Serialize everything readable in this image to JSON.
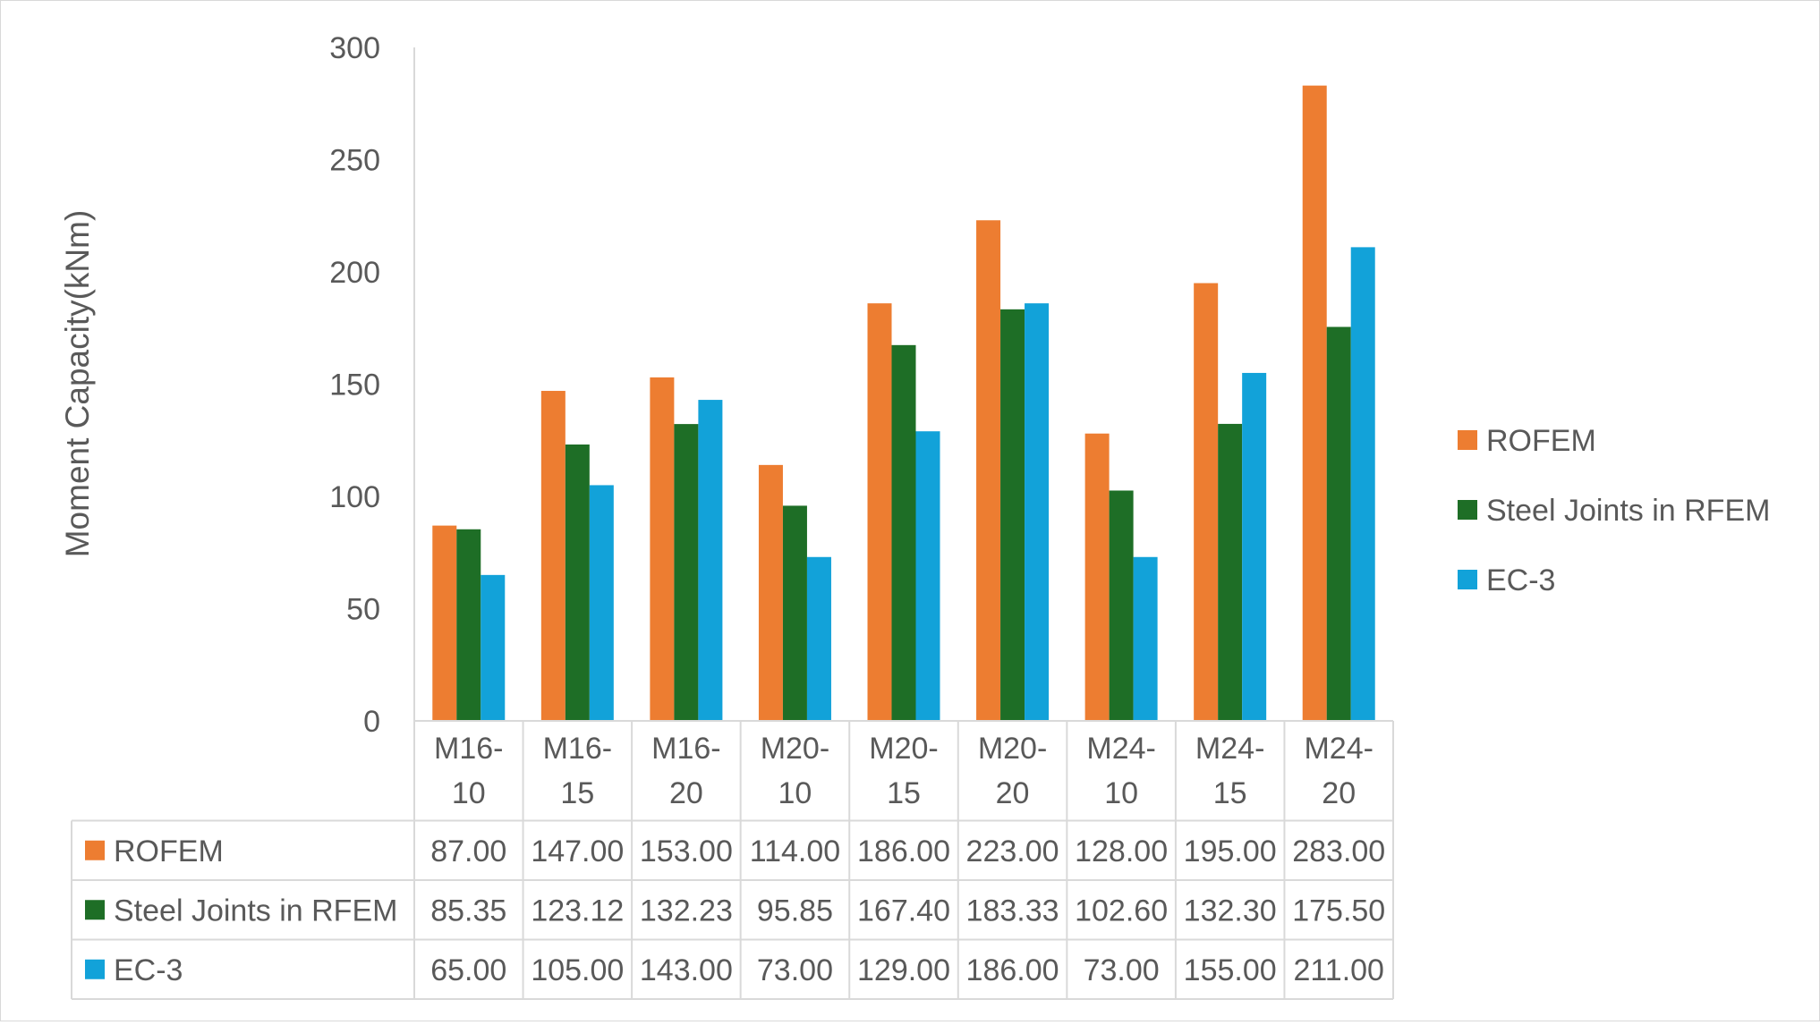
{
  "chart_data": {
    "type": "bar",
    "title": "",
    "xlabel": "",
    "ylabel": "Moment Capacity(kNm)",
    "ylim": [
      0,
      300
    ],
    "yticks": [
      0,
      50,
      100,
      150,
      200,
      250,
      300
    ],
    "grid": false,
    "legend_position": "right",
    "categories": [
      "M16-10",
      "M16-15",
      "M16-20",
      "M20-10",
      "M20-15",
      "M20-20",
      "M24-10",
      "M24-15",
      "M24-20"
    ],
    "category_lines": [
      [
        "M16-",
        "10"
      ],
      [
        "M16-",
        "15"
      ],
      [
        "M16-",
        "20"
      ],
      [
        "M20-",
        "10"
      ],
      [
        "M20-",
        "15"
      ],
      [
        "M20-",
        "20"
      ],
      [
        "M24-",
        "10"
      ],
      [
        "M24-",
        "15"
      ],
      [
        "M24-",
        "20"
      ]
    ],
    "series": [
      {
        "name": "ROFEM",
        "color": "#ED7D31",
        "values": [
          87.0,
          147.0,
          153.0,
          114.0,
          186.0,
          223.0,
          128.0,
          195.0,
          283.0
        ],
        "labels": [
          "87.00",
          "147.00",
          "153.00",
          "114.00",
          "186.00",
          "223.00",
          "128.00",
          "195.00",
          "283.00"
        ]
      },
      {
        "name": "Steel Joints in RFEM",
        "color": "#1E6E26",
        "values": [
          85.35,
          123.12,
          132.23,
          95.85,
          167.4,
          183.33,
          102.6,
          132.3,
          175.5
        ],
        "labels": [
          "85.35",
          "123.12",
          "132.23",
          "95.85",
          "167.40",
          "183.33",
          "102.60",
          "132.30",
          "175.50"
        ]
      },
      {
        "name": "EC-3",
        "color": "#12A2D9",
        "values": [
          65.0,
          105.0,
          143.0,
          73.0,
          129.0,
          186.0,
          73.0,
          155.0,
          211.0
        ],
        "labels": [
          "65.00",
          "105.00",
          "143.00",
          "73.00",
          "129.00",
          "186.00",
          "73.00",
          "155.00",
          "211.00"
        ]
      }
    ],
    "data_table": true
  }
}
